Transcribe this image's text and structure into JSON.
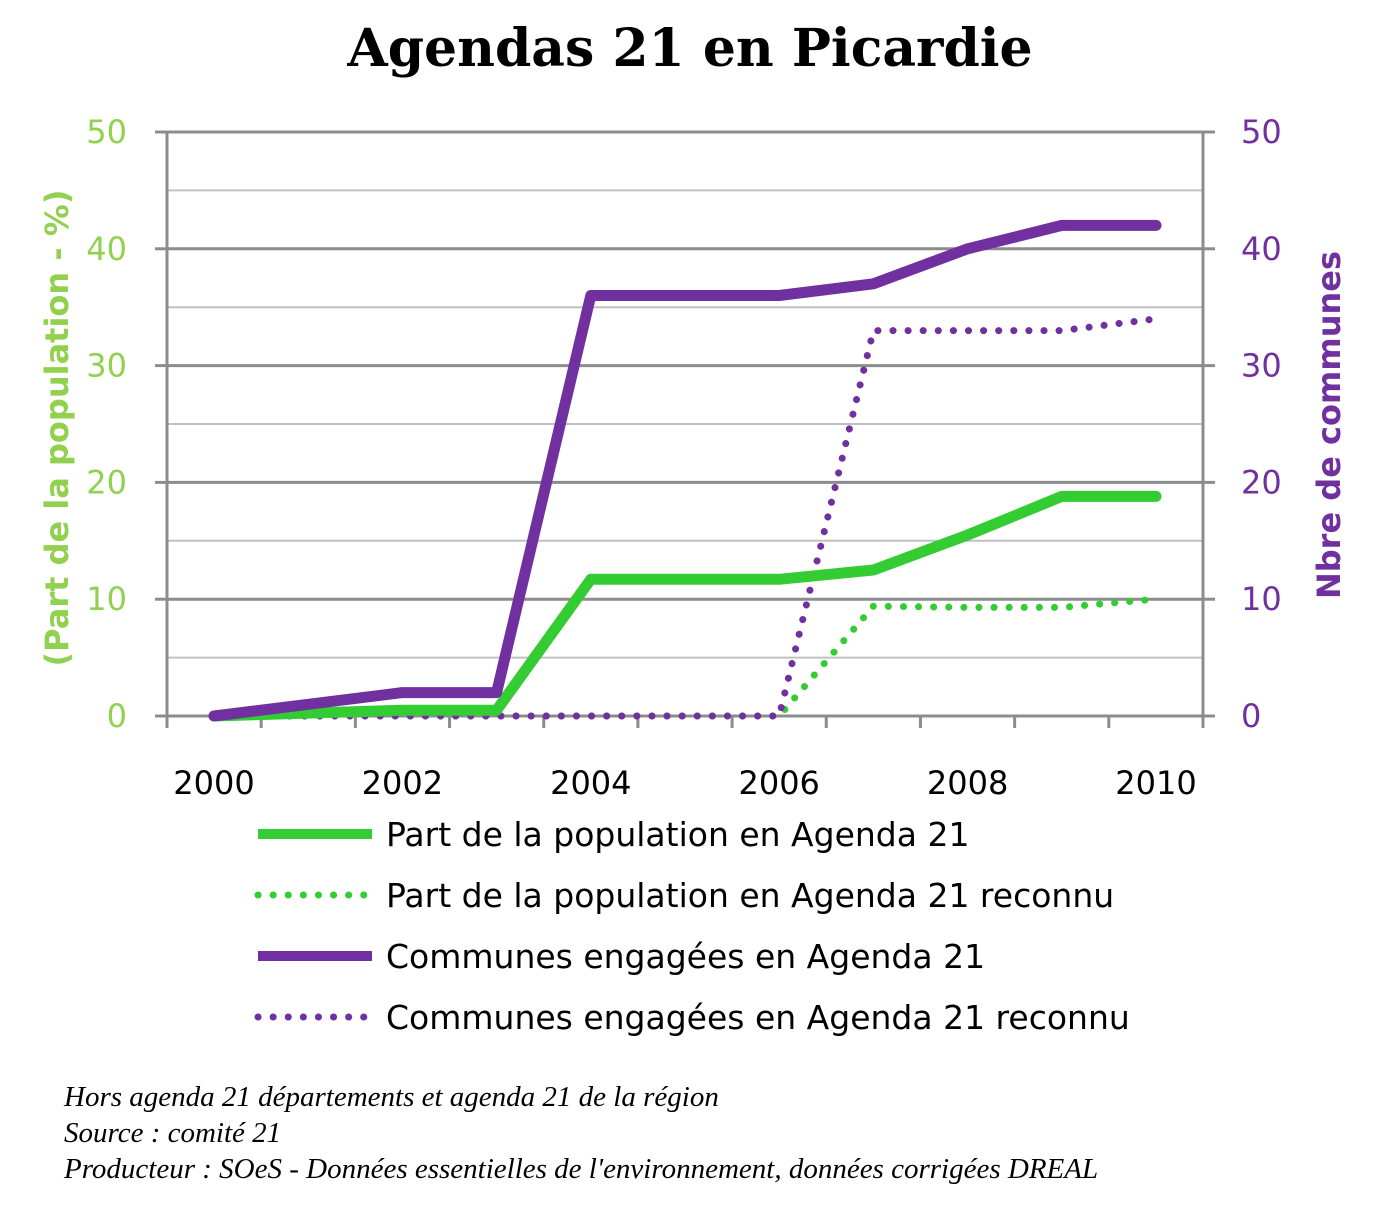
{
  "chart_data": {
    "type": "line",
    "title": "Agendas 21 en Picardie",
    "x": [
      2000,
      2001,
      2002,
      2003,
      2004,
      2005,
      2006,
      2007,
      2008,
      2009,
      2010
    ],
    "x_ticks": [
      "2000",
      "2002",
      "2004",
      "2006",
      "2008",
      "2010"
    ],
    "ylabel_left": "(Part de la population - %)",
    "ylabel_right": "Nbre de communes",
    "ylim_left": [
      0,
      50
    ],
    "ylim_right": [
      0,
      50
    ],
    "yticks_left": [
      "0",
      "10",
      "20",
      "30",
      "40",
      "50"
    ],
    "yticks_right": [
      "0",
      "10",
      "20",
      "30",
      "40",
      "50"
    ],
    "grid": true,
    "legend_placement": "bottom",
    "series": [
      {
        "name": "Part de la population en Agenda 21",
        "axis": "left",
        "style": "solid",
        "color": "#33cc33",
        "points": [
          [
            2000,
            0
          ],
          [
            2002,
            0.5
          ],
          [
            2003,
            0.5
          ],
          [
            2004,
            11.7
          ],
          [
            2006,
            11.7
          ],
          [
            2007,
            12.5
          ],
          [
            2008,
            15.5
          ],
          [
            2009,
            18.8
          ],
          [
            2010,
            18.8
          ]
        ]
      },
      {
        "name": "Part de la population en Agenda 21 reconnu",
        "axis": "left",
        "style": "dotted",
        "color": "#33cc33",
        "points": [
          [
            2000,
            0
          ],
          [
            2006,
            0
          ],
          [
            2007,
            9.4
          ],
          [
            2008,
            9.3
          ],
          [
            2009,
            9.3
          ],
          [
            2010,
            10
          ]
        ]
      },
      {
        "name": "Communes engagées en Agenda 21",
        "axis": "right",
        "style": "solid",
        "color": "#7030a0",
        "points": [
          [
            2000,
            0
          ],
          [
            2002,
            2
          ],
          [
            2003,
            2
          ],
          [
            2004,
            36
          ],
          [
            2006,
            36
          ],
          [
            2007,
            37
          ],
          [
            2008,
            40
          ],
          [
            2009,
            42
          ],
          [
            2010,
            42
          ]
        ]
      },
      {
        "name": "Communes engagées en Agenda 21 reconnu",
        "axis": "right",
        "style": "dotted",
        "color": "#7030a0",
        "points": [
          [
            2000,
            0
          ],
          [
            2006,
            0
          ],
          [
            2007,
            33
          ],
          [
            2008,
            33
          ],
          [
            2009,
            33
          ],
          [
            2010,
            34
          ]
        ]
      }
    ],
    "notes": [
      "Hors agenda 21 départements et agenda 21 de la région",
      "Source : comité 21",
      "Producteur : SOeS - Données essentielles de l'environnement, données corrigées DREAL"
    ]
  }
}
